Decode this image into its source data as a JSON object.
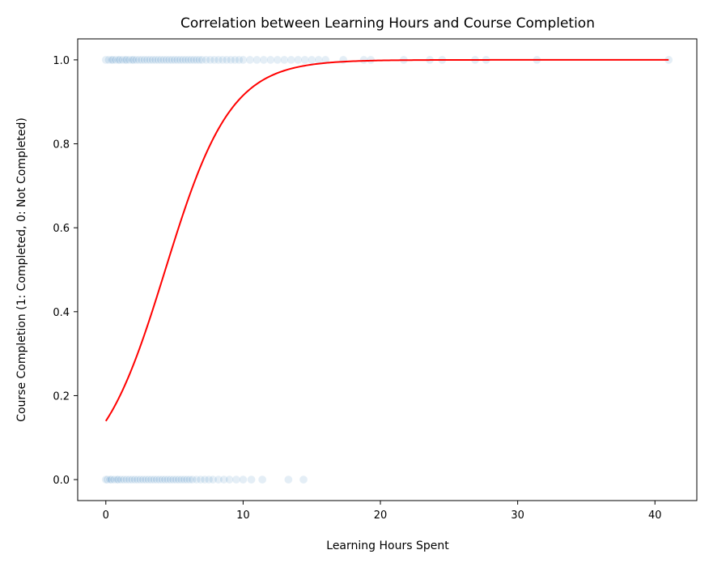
{
  "chart_data": {
    "type": "scatter",
    "title": "Correlation between Learning Hours and Course Completion",
    "xlabel": "Learning Hours Spent",
    "ylabel": "Course Completion (1: Completed, 0: Not Completed)",
    "xlim": [
      -2.05,
      43.05
    ],
    "ylim": [
      -0.05,
      1.05
    ],
    "xticks": [
      0,
      10,
      20,
      30,
      40
    ],
    "yticks": [
      0.0,
      0.2,
      0.4,
      0.6,
      0.8,
      1.0
    ],
    "grid": false,
    "colors": {
      "points": "#1f77b4",
      "fit_line": "#ff0000",
      "axes": "#000000"
    },
    "series": [
      {
        "type": "scatter",
        "y": 1,
        "x": [
          0.0,
          0.2,
          0.4,
          0.5,
          0.7,
          0.9,
          1.0,
          1.2,
          1.4,
          1.5,
          1.7,
          1.9,
          2.0,
          2.2,
          2.4,
          2.6,
          2.8,
          3.0,
          3.2,
          3.4,
          3.6,
          3.8,
          4.0,
          4.2,
          4.4,
          4.6,
          4.8,
          5.0,
          5.2,
          5.4,
          5.6,
          5.8,
          6.0,
          6.2,
          6.4,
          6.6,
          6.8,
          7.0,
          7.3,
          7.6,
          7.9,
          8.2,
          8.5,
          8.8,
          9.1,
          9.4,
          9.7,
          10.0,
          10.5,
          11.0,
          11.5,
          12.0,
          12.5,
          13.0,
          13.5,
          14.0,
          14.5,
          15.0,
          15.5,
          16.0,
          17.3,
          18.8,
          19.3,
          21.7,
          23.6,
          24.5,
          26.9,
          27.7,
          31.4,
          41.0
        ]
      },
      {
        "type": "scatter",
        "y": 0,
        "x": [
          0.0,
          0.1,
          0.3,
          0.4,
          0.6,
          0.8,
          0.9,
          1.1,
          1.3,
          1.5,
          1.7,
          1.9,
          2.1,
          2.3,
          2.5,
          2.7,
          2.9,
          3.1,
          3.3,
          3.5,
          3.7,
          3.9,
          4.1,
          4.3,
          4.5,
          4.7,
          4.9,
          5.1,
          5.3,
          5.5,
          5.7,
          5.9,
          6.1,
          6.3,
          6.6,
          6.9,
          7.2,
          7.5,
          7.8,
          8.2,
          8.6,
          9.0,
          9.5,
          10.0,
          10.6,
          11.4,
          13.3,
          14.4
        ]
      },
      {
        "type": "line",
        "name": "",
        "logistic": {
          "intercept": -1.82,
          "slope": 0.42
        },
        "x_range": [
          0,
          41
        ]
      }
    ]
  }
}
